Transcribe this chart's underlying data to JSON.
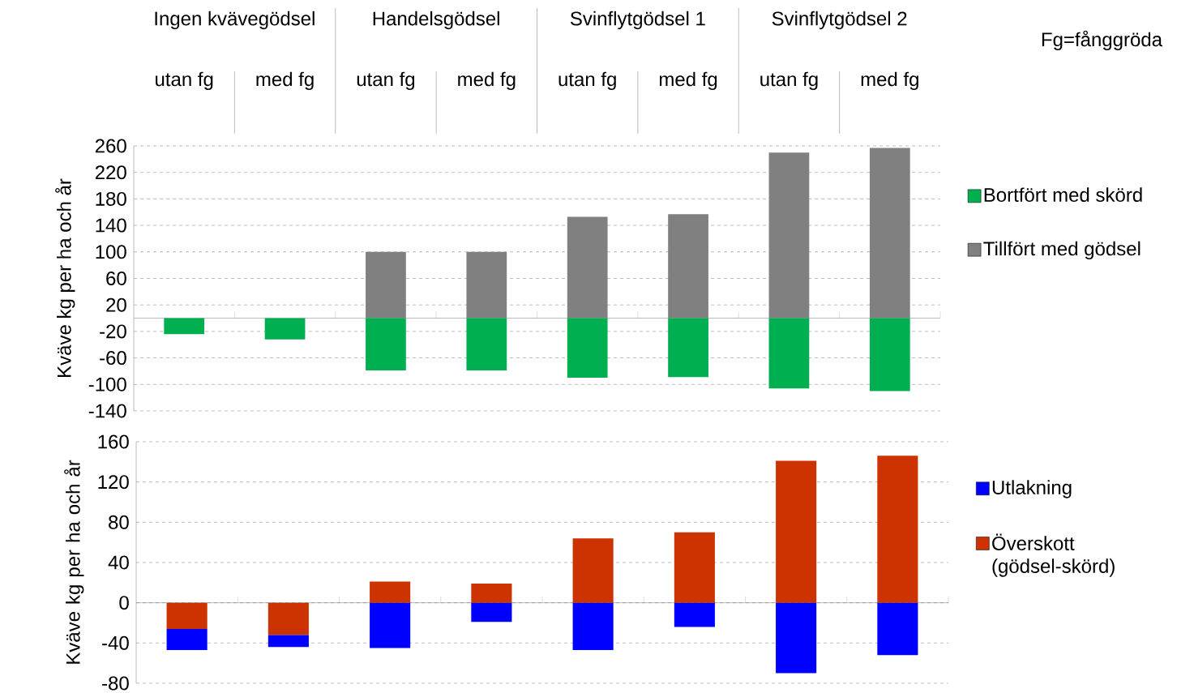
{
  "chart_data": [
    {
      "type": "bar",
      "ylabel": "Kväve kg per ha och år",
      "stacked": true,
      "categories": [
        "utan fg",
        "med fg",
        "utan fg",
        "med fg",
        "utan fg",
        "med fg",
        "utan fg",
        "med fg"
      ],
      "series": [
        {
          "name": "Tillfört med gödsel",
          "color": "#808080",
          "values": [
            null,
            null,
            100,
            100,
            153,
            157,
            250,
            257
          ]
        },
        {
          "name": "Bortfört med skörd",
          "color": "#00b050",
          "values": [
            -24,
            -32,
            -79,
            -79,
            -90,
            -89,
            -106,
            -110
          ]
        }
      ],
      "ylim": [
        -140,
        260
      ],
      "yticks": [
        -140,
        -100,
        -60,
        -20,
        20,
        60,
        100,
        140,
        180,
        220,
        260
      ],
      "grid": "y",
      "legend": "right",
      "annotations": [
        "Ingen kvävegödsel",
        "Handelsgödsel",
        "Svinflytgödsel 1",
        "Svinflytgödsel 2",
        "Fg=fånggröda"
      ]
    },
    {
      "type": "bar",
      "ylabel": "Kväve kg per ha och år",
      "stacked": true,
      "categories": [
        null,
        null,
        null,
        null,
        null,
        null,
        null,
        null
      ],
      "series": [
        {
          "name": "Överskott (gödsel-skörd)",
          "color": "#cc3300",
          "values": [
            -26,
            -32,
            21,
            19,
            64,
            70,
            141,
            146
          ]
        },
        {
          "name": "Utlakning",
          "color": "#0000ff",
          "values": [
            -21,
            -12,
            -45,
            -19,
            -47,
            -24,
            -70,
            -52
          ]
        }
      ],
      "ylim": [
        -80,
        160
      ],
      "yticks": [
        -80,
        -40,
        0,
        40,
        80,
        120,
        160
      ],
      "grid": "y",
      "legend": "right",
      "tick_labels": "y"
    }
  ]
}
